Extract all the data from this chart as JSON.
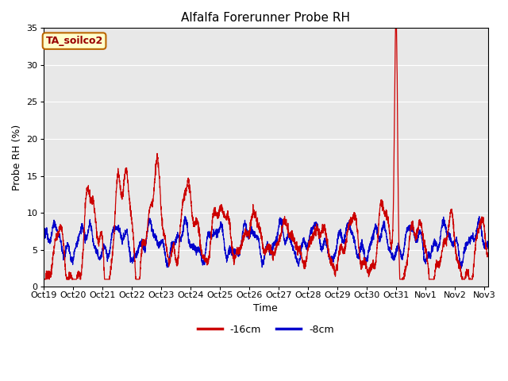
{
  "title": "Alfalfa Forerunner Probe RH",
  "xlabel": "Time",
  "ylabel": "Probe RH (%)",
  "ylim": [
    0,
    35
  ],
  "yticks": [
    0,
    5,
    10,
    15,
    20,
    25,
    30,
    35
  ],
  "annotation_text": "TA_soilco2",
  "annotation_bg": "#ffffcc",
  "annotation_border": "#bb6600",
  "line1_color": "#cc0000",
  "line2_color": "#0000cc",
  "line1_label": "-16cm",
  "line2_label": "-8cm",
  "plot_bg": "#e8e8e8",
  "grid_color": "#ffffff",
  "n_points": 3360,
  "x_start": 19.0,
  "x_end": 34.125,
  "xtick_positions": [
    19,
    20,
    21,
    22,
    23,
    24,
    25,
    26,
    27,
    28,
    29,
    30,
    31,
    32,
    33,
    34
  ],
  "xtick_labels": [
    "Oct 19",
    "Oct 20",
    "Oct 21",
    "Oct 22",
    "Oct 23",
    "Oct 24",
    "Oct 25",
    "Oct 26",
    "Oct 27",
    "Oct 28",
    "Oct 29",
    "Oct 30",
    "Oct 31",
    "Nov 1",
    "Nov 2",
    "Nov 3"
  ]
}
